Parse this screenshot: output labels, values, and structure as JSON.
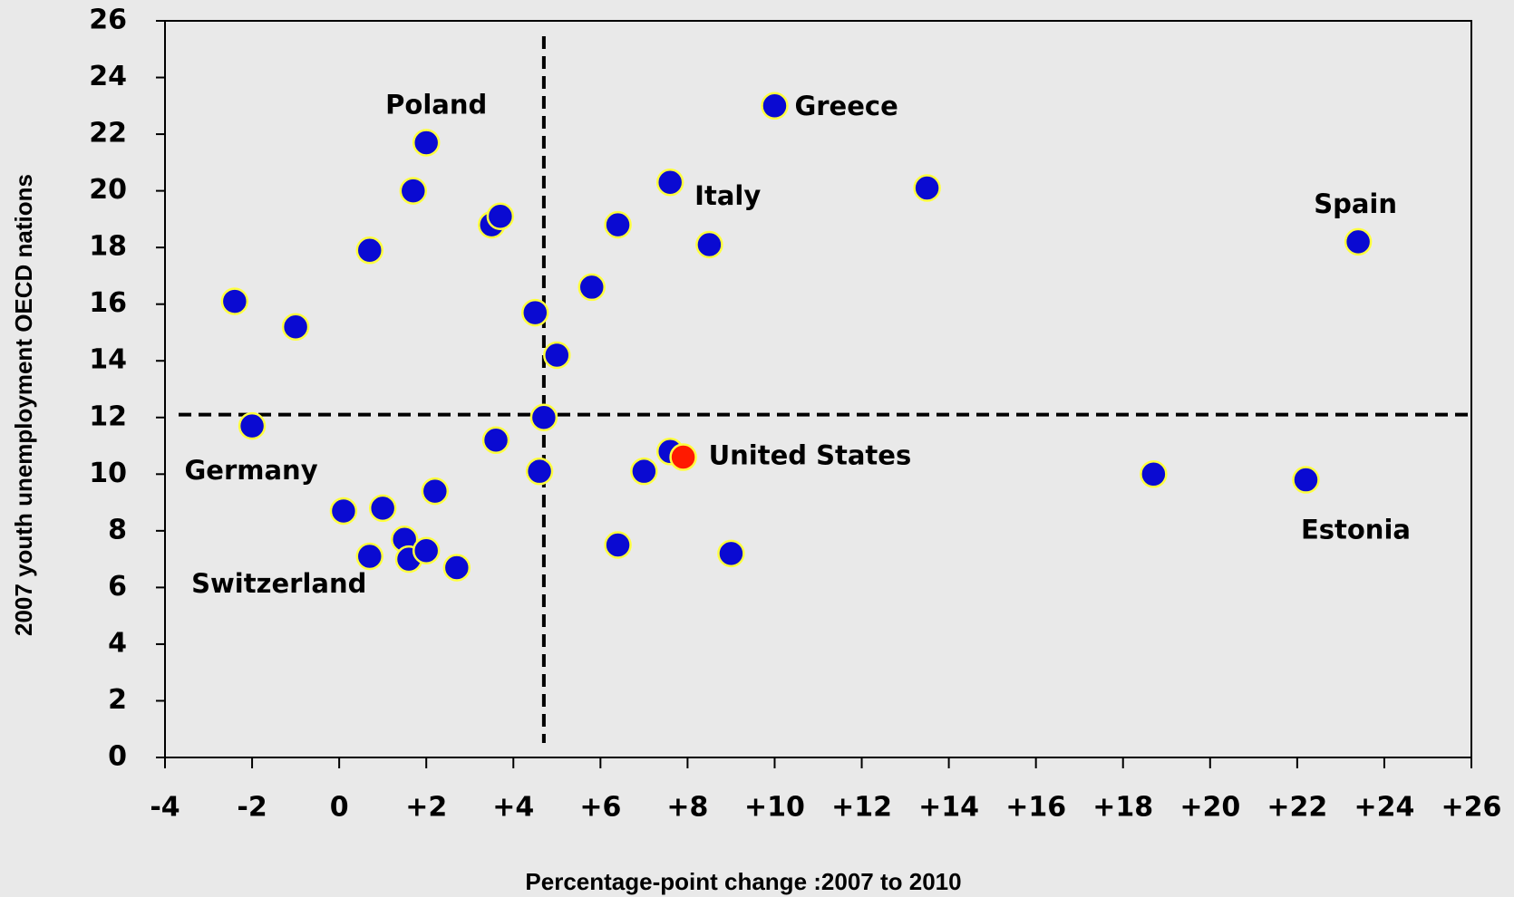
{
  "chart_data": {
    "type": "scatter",
    "x_label": "Percentage-point change :2007 to 2010",
    "y_label": "2007 youth unemployment OECD nations",
    "xlim": [
      -4,
      26
    ],
    "ylim": [
      0,
      26
    ],
    "xticks": [
      -4,
      -2,
      0,
      {
        "value": 2,
        "label": "+2"
      },
      {
        "value": 4,
        "label": "+4"
      },
      {
        "value": 6,
        "label": "+6"
      },
      {
        "value": 8,
        "label": "+8"
      },
      {
        "value": 10,
        "label": "+10"
      },
      {
        "value": 12,
        "label": "+12"
      },
      {
        "value": 14,
        "label": "+14"
      },
      {
        "value": 16,
        "label": "+16"
      },
      {
        "value": 18,
        "label": "+18"
      },
      {
        "value": 20,
        "label": "+20"
      },
      {
        "value": 22,
        "label": "+22"
      },
      {
        "value": 24,
        "label": "+24"
      },
      {
        "value": 26,
        "label": "+26"
      }
    ],
    "yticks": [
      0,
      2,
      4,
      6,
      8,
      10,
      12,
      14,
      16,
      18,
      20,
      22,
      24,
      26
    ],
    "reference_lines": {
      "x": 4.7,
      "y": 12.1
    },
    "x": [
      2.0,
      10.0,
      1.7,
      7.6,
      13.5,
      3.5,
      3.7,
      6.4,
      0.7,
      8.5,
      23.4,
      -2.4,
      5.8,
      -1.0,
      4.5,
      5.0,
      4.7,
      -2.0,
      3.6,
      7.6,
      7.9,
      4.6,
      7.0,
      18.7,
      22.2,
      2.2,
      0.1,
      1.0,
      1.5,
      6.4,
      9.0,
      0.7,
      1.6,
      2.0,
      2.7
    ],
    "y": [
      21.7,
      23.0,
      20.0,
      20.3,
      20.1,
      18.8,
      19.1,
      18.8,
      17.9,
      18.1,
      18.2,
      16.1,
      16.6,
      15.2,
      15.7,
      14.2,
      12.0,
      11.7,
      11.2,
      10.8,
      10.6,
      10.1,
      10.1,
      10.0,
      9.8,
      9.4,
      8.7,
      8.8,
      7.7,
      7.5,
      7.2,
      7.1,
      7.0,
      7.3,
      6.7
    ],
    "colors": [
      "#0a0ad2",
      "#0a0ad2",
      "#0a0ad2",
      "#0a0ad2",
      "#0a0ad2",
      "#0a0ad2",
      "#0a0ad2",
      "#0a0ad2",
      "#0a0ad2",
      "#0a0ad2",
      "#0a0ad2",
      "#0a0ad2",
      "#0a0ad2",
      "#0a0ad2",
      "#0a0ad2",
      "#0a0ad2",
      "#0a0ad2",
      "#0a0ad2",
      "#0a0ad2",
      "#0a0ad2",
      "#ff1a00",
      "#0a0ad2",
      "#0a0ad2",
      "#0a0ad2",
      "#0a0ad2",
      "#0a0ad2",
      "#0a0ad2",
      "#0a0ad2",
      "#0a0ad2",
      "#0a0ad2",
      "#0a0ad2",
      "#0a0ad2",
      "#0a0ad2",
      "#0a0ad2",
      "#0a0ad2"
    ],
    "point_labels": [
      "Poland",
      "Greece",
      null,
      "Italy",
      null,
      null,
      null,
      null,
      null,
      null,
      "Spain",
      null,
      null,
      null,
      null,
      null,
      null,
      "Germany",
      null,
      null,
      "United States",
      null,
      null,
      null,
      "Estonia",
      null,
      null,
      null,
      null,
      null,
      null,
      "Switzerland",
      null,
      null,
      null
    ]
  }
}
